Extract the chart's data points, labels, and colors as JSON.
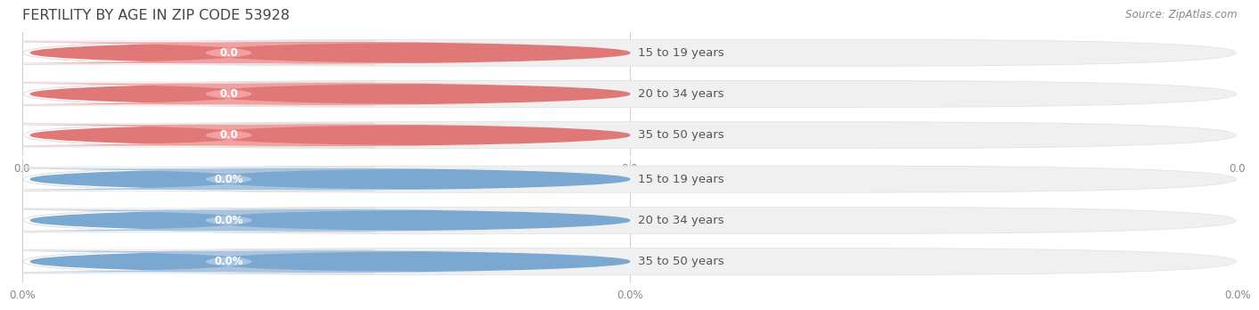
{
  "title": "FERTILITY BY AGE IN ZIP CODE 53928",
  "source_text": "Source: ZipAtlas.com",
  "top_section": {
    "categories": [
      "15 to 19 years",
      "20 to 34 years",
      "35 to 50 years"
    ],
    "values": [
      0.0,
      0.0,
      0.0
    ],
    "bar_color": "#f2a0a0",
    "value_text_color": "#ffffff",
    "label_format": "0.0",
    "tick_label": "0.0",
    "circle_color": "#e07878"
  },
  "bottom_section": {
    "categories": [
      "15 to 19 years",
      "20 to 34 years",
      "35 to 50 years"
    ],
    "values": [
      0.0,
      0.0,
      0.0
    ],
    "bar_color": "#a8c4e0",
    "value_text_color": "#ffffff",
    "label_format": "0.0%",
    "tick_label": "0.0%",
    "circle_color": "#7aa8d0"
  },
  "bg_color": "#ffffff",
  "bar_bg_color": "#f0f0f0",
  "bar_bg_edge_color": "#e0e0e0",
  "title_color": "#444444",
  "title_fontsize": 11.5,
  "category_fontsize": 9.5,
  "value_fontsize": 8.5,
  "tick_fontsize": 8.5,
  "source_fontsize": 8.5,
  "source_color": "#888888",
  "pill_circle_color_top": "#e07878",
  "pill_circle_color_bottom": "#7aaad0"
}
